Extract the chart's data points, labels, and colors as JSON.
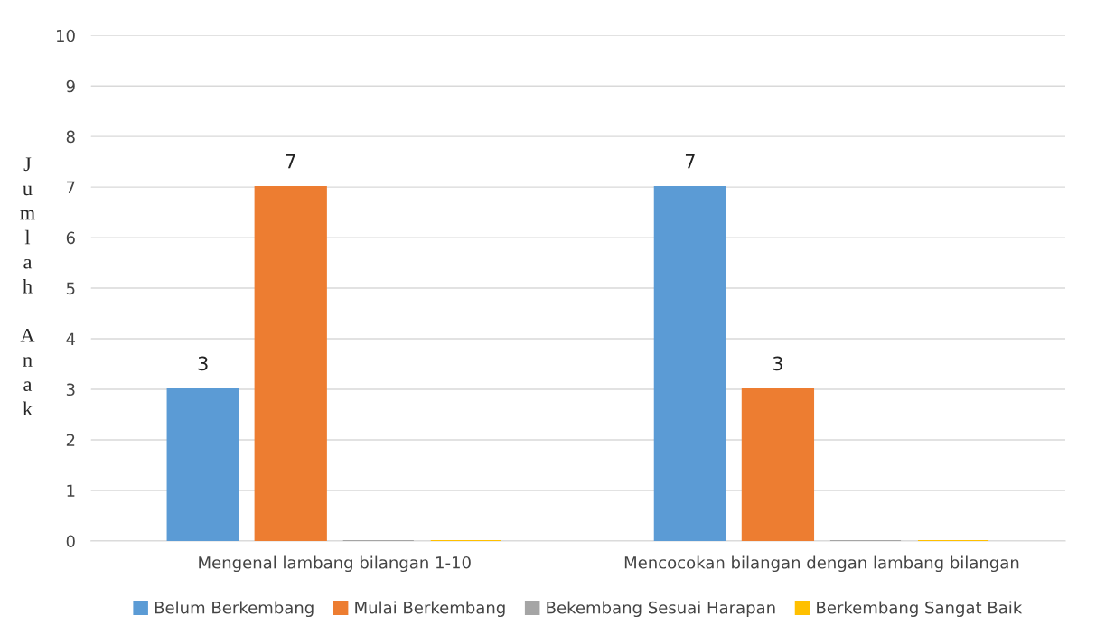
{
  "chart_data": {
    "type": "bar",
    "ylabel": "Jumlah Anak",
    "categories": [
      "Mengenal lambang bilangan 1-10",
      "Mencocokan bilangan dengan lambang bilangan"
    ],
    "series": [
      {
        "name": "Belum Berkembang",
        "color": "#5b9bd5",
        "values": [
          3,
          7
        ],
        "value_labels": [
          "3",
          "7"
        ]
      },
      {
        "name": "Mulai Berkembang",
        "color": "#ed7d31",
        "values": [
          7,
          3
        ],
        "value_labels": [
          "7",
          "3"
        ]
      },
      {
        "name": "Bekembang Sesuai Harapan",
        "color": "#a5a5a5",
        "values": [
          0,
          0
        ],
        "value_labels": [
          null,
          null
        ]
      },
      {
        "name": "Berkembang Sangat Baik",
        "color": "#ffc000",
        "values": [
          0,
          0
        ],
        "value_labels": [
          null,
          null
        ]
      }
    ],
    "ylim": [
      0,
      10
    ],
    "yticks": [
      0,
      1,
      2,
      3,
      4,
      5,
      6,
      7,
      8,
      9,
      10
    ],
    "grid": "y",
    "legend": "bottom"
  }
}
